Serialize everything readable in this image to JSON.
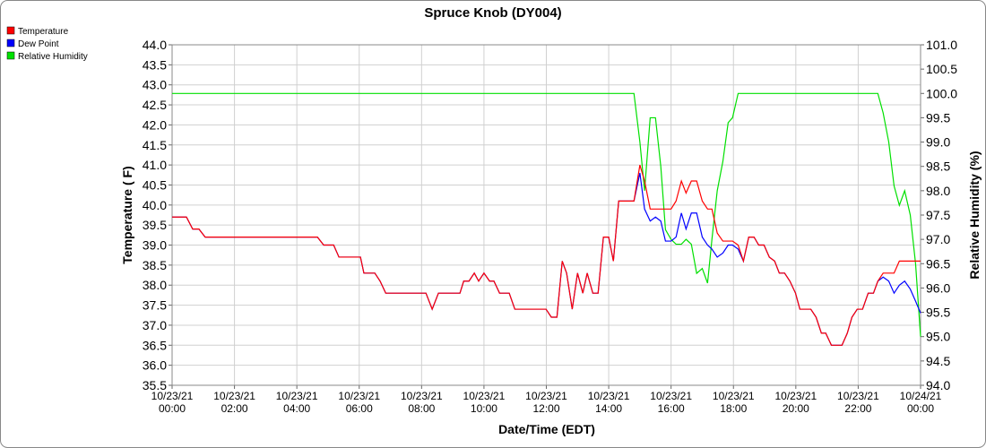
{
  "chart_data": {
    "type": "line",
    "title": "Spruce Knob (DY004)",
    "x_label": "Date/Time (EDT)",
    "y_label": "Temperature ( F)",
    "y2_label": "Relative Humidity (%)",
    "x": [
      0,
      0.46,
      0.66,
      0.86,
      1.06,
      4.66,
      4.86,
      5.18,
      5.35,
      6.04,
      6.15,
      6.5,
      6.67,
      6.85,
      8.14,
      8.34,
      8.54,
      9.23,
      9.35,
      9.52,
      9.69,
      9.83,
      10.0,
      10.18,
      10.32,
      10.5,
      10.81,
      10.99,
      11.99,
      12.16,
      12.34,
      12.51,
      12.65,
      12.83,
      13.0,
      13.17,
      13.31,
      13.49,
      13.66,
      13.83,
      14.0,
      14.15,
      14.32,
      14.81,
      15.0,
      15.15,
      15.33,
      15.5,
      15.67,
      15.82,
      16.0,
      16.16,
      16.33,
      16.48,
      16.65,
      16.82,
      17.0,
      17.17,
      17.31,
      17.48,
      17.66,
      17.83,
      17.97,
      18.15,
      18.32,
      18.49,
      18.66,
      18.81,
      18.98,
      19.15,
      19.32,
      19.47,
      19.64,
      19.81,
      19.99,
      20.13,
      20.48,
      20.65,
      20.82,
      20.96,
      21.14,
      21.48,
      21.65,
      21.8,
      21.97,
      22.14,
      22.32,
      22.49,
      22.63,
      22.8,
      22.98,
      23.15,
      23.32,
      23.49,
      23.67,
      23.84,
      24
    ],
    "series": [
      {
        "name": "Temperature",
        "color": "#ff0000",
        "values": [
          39.7,
          39.7,
          39.4,
          39.4,
          39.2,
          39.2,
          39.0,
          39.0,
          38.7,
          38.7,
          38.3,
          38.3,
          38.1,
          37.8,
          37.8,
          37.4,
          37.8,
          37.8,
          38.1,
          38.1,
          38.3,
          38.1,
          38.3,
          38.1,
          38.1,
          37.8,
          37.8,
          37.4,
          37.4,
          37.2,
          37.2,
          38.6,
          38.3,
          37.4,
          38.3,
          37.8,
          38.3,
          37.8,
          37.8,
          39.2,
          39.2,
          38.6,
          40.1,
          40.1,
          41.0,
          40.6,
          39.9,
          39.9,
          39.9,
          39.9,
          39.9,
          40.1,
          40.6,
          40.3,
          40.6,
          40.6,
          40.1,
          39.9,
          39.9,
          39.3,
          39.1,
          39.1,
          39.1,
          39.0,
          38.6,
          39.2,
          39.2,
          39.0,
          39.0,
          38.7,
          38.6,
          38.3,
          38.3,
          38.1,
          37.8,
          37.4,
          37.4,
          37.2,
          36.8,
          36.8,
          36.5,
          36.5,
          36.8,
          37.2,
          37.4,
          37.4,
          37.8,
          37.8,
          38.1,
          38.3,
          38.3,
          38.3,
          38.6,
          38.6,
          38.6,
          38.6,
          38.6
        ]
      },
      {
        "name": "Dew Point",
        "color": "#0000ff",
        "values": [
          39.7,
          39.7,
          39.4,
          39.4,
          39.2,
          39.2,
          39.0,
          39.0,
          38.7,
          38.7,
          38.3,
          38.3,
          38.1,
          37.8,
          37.8,
          37.4,
          37.8,
          37.8,
          38.1,
          38.1,
          38.3,
          38.1,
          38.3,
          38.1,
          38.1,
          37.8,
          37.8,
          37.4,
          37.4,
          37.2,
          37.2,
          38.6,
          38.3,
          37.4,
          38.3,
          37.8,
          38.3,
          37.8,
          37.8,
          39.2,
          39.2,
          38.6,
          40.1,
          40.1,
          40.8,
          39.9,
          39.6,
          39.7,
          39.6,
          39.1,
          39.1,
          39.2,
          39.8,
          39.4,
          39.8,
          39.8,
          39.2,
          39.0,
          38.9,
          38.7,
          38.8,
          39.0,
          39.0,
          38.9,
          38.6,
          39.2,
          39.2,
          39.0,
          39.0,
          38.7,
          38.6,
          38.3,
          38.3,
          38.1,
          37.8,
          37.4,
          37.4,
          37.2,
          36.8,
          36.8,
          36.5,
          36.5,
          36.8,
          37.2,
          37.4,
          37.4,
          37.8,
          37.8,
          38.1,
          38.2,
          38.1,
          37.8,
          38.0,
          38.1,
          37.9,
          37.6,
          37.3
        ]
      },
      {
        "name": "Relative Humidity",
        "color": "#00e000",
        "axis": "y2",
        "values": [
          100,
          100,
          100,
          100,
          100,
          100,
          100,
          100,
          100,
          100,
          100,
          100,
          100,
          100,
          100,
          100,
          100,
          100,
          100,
          100,
          100,
          100,
          100,
          100,
          100,
          100,
          100,
          100,
          100,
          100,
          100,
          100,
          100,
          100,
          100,
          100,
          100,
          100,
          100,
          100,
          100,
          100,
          100,
          100,
          99.0,
          98.0,
          99.5,
          99.5,
          98.5,
          97.2,
          97.0,
          96.9,
          96.9,
          97.0,
          96.9,
          96.3,
          96.4,
          96.1,
          97.0,
          98.0,
          98.6,
          99.4,
          99.5,
          100,
          100,
          100,
          100,
          100,
          100,
          100,
          100,
          100,
          100,
          100,
          100,
          100,
          100,
          100,
          100,
          100,
          100,
          100,
          100,
          100,
          100,
          100,
          100,
          100,
          100,
          99.6,
          99.0,
          98.1,
          97.7,
          98.0,
          97.5,
          96.5,
          95.0
        ]
      }
    ],
    "xlim": [
      0,
      24
    ],
    "xticks": [
      {
        "value": 0,
        "label": "10/23/21 00:00"
      },
      {
        "value": 2,
        "label": "10/23/21 02:00"
      },
      {
        "value": 4,
        "label": "10/23/21 04:00"
      },
      {
        "value": 6,
        "label": "10/23/21 06:00"
      },
      {
        "value": 8,
        "label": "10/23/21 08:00"
      },
      {
        "value": 10,
        "label": "10/23/21 10:00"
      },
      {
        "value": 12,
        "label": "10/23/21 12:00"
      },
      {
        "value": 14,
        "label": "10/23/21 14:00"
      },
      {
        "value": 16,
        "label": "10/23/21 16:00"
      },
      {
        "value": 18,
        "label": "10/23/21 18:00"
      },
      {
        "value": 20,
        "label": "10/23/21 20:00"
      },
      {
        "value": 22,
        "label": "10/23/21 22:00"
      },
      {
        "value": 24,
        "label": "10/24/21 00:00"
      }
    ],
    "ylim": [
      35.5,
      44
    ],
    "yticks": [
      35.5,
      {
        "value": 36,
        "label": "36.0"
      },
      36.5,
      {
        "value": 37,
        "label": "37.0"
      },
      37.5,
      {
        "value": 38,
        "label": "38.0"
      },
      38.5,
      {
        "value": 39,
        "label": "39.0"
      },
      39.5,
      {
        "value": 40,
        "label": "40.0"
      },
      40.5,
      {
        "value": 41,
        "label": "41.0"
      },
      41.5,
      {
        "value": 42,
        "label": "42.0"
      },
      42.5,
      {
        "value": 43,
        "label": "43.0"
      },
      43.5,
      {
        "value": 44,
        "label": "44.0"
      }
    ],
    "y2lim": [
      94,
      101
    ],
    "y2ticks": [
      {
        "value": 94,
        "label": "94.0"
      },
      94.5,
      {
        "value": 95,
        "label": "95.0"
      },
      95.5,
      {
        "value": 96,
        "label": "96.0"
      },
      96.5,
      {
        "value": 97,
        "label": "97.0"
      },
      97.5,
      {
        "value": 98,
        "label": "98.0"
      },
      98.5,
      {
        "value": 99,
        "label": "99.0"
      },
      99.5,
      {
        "value": 100,
        "label": "100.0"
      },
      100.5,
      {
        "value": 101,
        "label": "101.0"
      }
    ],
    "grid": true,
    "legend": "top-left"
  }
}
